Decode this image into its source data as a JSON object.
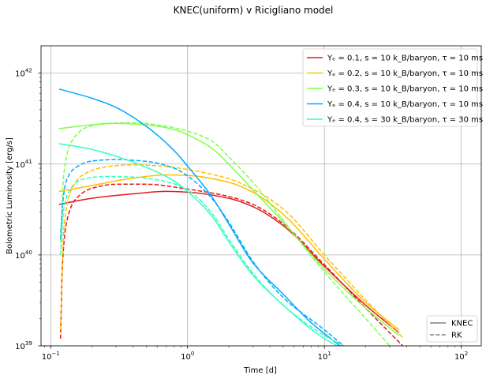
{
  "chart_data": {
    "type": "line",
    "title": "KNEC(uniform) v Ricigliano model",
    "xlabel": "Time [d]",
    "ylabel": "Bolometric Luminosity [erg/s]",
    "xscale": "log",
    "yscale": "log",
    "xlim": [
      0.085,
      140
    ],
    "ylim": [
      1e+39,
      2e+42
    ],
    "grid": true,
    "x_ticks": [
      {
        "value": 0.1,
        "base": "10",
        "exp": "−1"
      },
      {
        "value": 1,
        "base": "10",
        "exp": "0"
      },
      {
        "value": 10,
        "base": "10",
        "exp": "1"
      },
      {
        "value": 100,
        "base": "10",
        "exp": "2"
      }
    ],
    "y_ticks": [
      {
        "value": 1e+39,
        "base": "10",
        "exp": "39"
      },
      {
        "value": 1e+40,
        "base": "10",
        "exp": "40"
      },
      {
        "value": 1e+41,
        "base": "10",
        "exp": "41"
      },
      {
        "value": 1e+42,
        "base": "10",
        "exp": "42"
      }
    ],
    "legend_placement": "top-right",
    "legend": [
      {
        "label": "Yₑ = 0.1, s = 10 k_B/baryon, τ = 10 ms",
        "color": "#e41a1c"
      },
      {
        "label": "Yₑ = 0.2, s = 10 k_B/baryon, τ = 10 ms",
        "color": "#ffbf00"
      },
      {
        "label": "Yₑ = 0.3, s = 10 k_B/baryon, τ = 10 ms",
        "color": "#80ff4d"
      },
      {
        "label": "Yₑ = 0.4, s = 10 k_B/baryon, τ = 10 ms",
        "color": "#00aaff"
      },
      {
        "label": "Yₑ = 0.4, s = 30 k_B/baryon, τ = 30 ms",
        "color": "#33ffc4"
      }
    ],
    "style_legend_placement": "bottom-right",
    "style_legend": [
      {
        "label": "KNEC",
        "dash": "solid",
        "color": "#808080"
      },
      {
        "label": "RK",
        "dash": "dashed",
        "color": "#808080"
      }
    ],
    "series": [
      {
        "color": "#e41a1c",
        "style": "solid",
        "x": [
          0.115,
          0.2,
          0.4,
          0.7,
          1,
          2,
          3,
          5,
          10,
          20,
          35
        ],
        "y": [
          3.6e+40,
          4.2e+40,
          4.7e+40,
          5e+40,
          4.9e+40,
          4.2e+40,
          3.4e+40,
          2.1e+40,
          7.5e+39,
          2.8e+39,
          1.4e+39
        ]
      },
      {
        "color": "#e41a1c",
        "style": "dashed",
        "x": [
          0.118,
          0.122,
          0.13,
          0.15,
          0.2,
          0.3,
          0.5,
          1,
          2,
          3,
          5,
          10,
          20,
          40
        ],
        "y": [
          1.2e+39,
          8e+39,
          2.2e+40,
          4e+40,
          5.4e+40,
          6e+40,
          6e+40,
          5.3e+40,
          4.4e+40,
          3.6e+40,
          2.2e+40,
          7.8e+39,
          2.6e+39,
          9e+38
        ]
      },
      {
        "color": "#ffbf00",
        "style": "solid",
        "x": [
          0.115,
          0.2,
          0.4,
          0.7,
          1,
          2,
          3,
          5,
          10,
          20,
          35
        ],
        "y": [
          5e+40,
          5.8e+40,
          7e+40,
          7.6e+40,
          7.5e+40,
          6.3e+40,
          4.9e+40,
          2.8e+40,
          9e+39,
          3e+39,
          1.5e+39
        ]
      },
      {
        "color": "#ffbf00",
        "style": "dashed",
        "x": [
          0.118,
          0.125,
          0.14,
          0.17,
          0.25,
          0.4,
          0.7,
          1,
          2,
          3,
          5,
          10,
          20,
          38
        ],
        "y": [
          1.5e+39,
          2e+40,
          5e+40,
          7.5e+40,
          9.3e+40,
          9.8e+40,
          9.4e+40,
          8.7e+40,
          6.9e+40,
          5.3e+40,
          3.2e+40,
          1e+40,
          3.2e+39,
          1.2e+39
        ]
      },
      {
        "color": "#80ff4d",
        "style": "solid",
        "x": [
          0.115,
          0.2,
          0.3,
          0.5,
          0.8,
          1,
          1.5,
          2,
          3,
          5,
          10,
          20,
          35
        ],
        "y": [
          2.45e+41,
          2.7e+41,
          2.8e+41,
          2.7e+41,
          2.4e+41,
          2.1e+41,
          1.5e+41,
          1e+41,
          5.2e+40,
          2.3e+40,
          7e+39,
          2.6e+39,
          1.3e+39
        ]
      },
      {
        "color": "#80ff4d",
        "style": "dashed",
        "x": [
          0.118,
          0.125,
          0.14,
          0.18,
          0.25,
          0.4,
          0.7,
          1,
          1.5,
          2,
          3,
          5,
          10,
          20,
          30
        ],
        "y": [
          1.4e+40,
          8e+40,
          1.7e+41,
          2.5e+41,
          2.8e+41,
          2.85e+41,
          2.6e+41,
          2.3e+41,
          1.8e+41,
          1.2e+41,
          6.3e+40,
          2.4e+40,
          6.5e+39,
          2e+39,
          1e+39
        ]
      },
      {
        "color": "#00aaff",
        "style": "solid",
        "x": [
          0.115,
          0.2,
          0.3,
          0.5,
          0.8,
          1,
          1.5,
          2,
          3,
          5,
          8,
          13
        ],
        "y": [
          6.7e+41,
          5.3e+41,
          4.2e+41,
          2.6e+41,
          1.4e+41,
          9.5e+40,
          4.4e+40,
          2.2e+40,
          8.2e+39,
          3.7e+39,
          1.8e+39,
          1e+39
        ]
      },
      {
        "color": "#00aaff",
        "style": "dashed",
        "x": [
          0.118,
          0.123,
          0.13,
          0.15,
          0.2,
          0.3,
          0.5,
          0.8,
          1,
          1.5,
          2,
          3,
          5,
          10,
          15
        ],
        "y": [
          1.5e+40,
          4e+40,
          6.5e+40,
          9e+40,
          1.08e+41,
          1.12e+41,
          1.07e+41,
          9e+40,
          7.4e+40,
          4.2e+40,
          2.3e+40,
          8.5e+39,
          3.4e+39,
          1.5e+39,
          9e+38
        ]
      },
      {
        "color": "#33ffc4",
        "style": "solid",
        "x": [
          0.115,
          0.2,
          0.3,
          0.5,
          0.8,
          1,
          1.5,
          2,
          3,
          5,
          10,
          20
        ],
        "y": [
          1.68e+41,
          1.45e+41,
          1.22e+41,
          9.2e+40,
          6.5e+40,
          5e+40,
          2.7e+40,
          1.4e+40,
          6e+39,
          2.8e+39,
          1.2e+39,
          7e+38
        ]
      },
      {
        "color": "#33ffc4",
        "style": "dashed",
        "x": [
          0.118,
          0.125,
          0.14,
          0.17,
          0.25,
          0.4,
          0.7,
          1,
          1.5,
          2,
          3,
          5,
          10,
          16
        ],
        "y": [
          1e+40,
          3.3e+40,
          5.4e+40,
          6.8e+40,
          7.3e+40,
          7.2e+40,
          6.4e+40,
          5.2e+40,
          2.9e+40,
          1.5e+40,
          6.3e+39,
          2.8e+39,
          1.3e+39,
          9e+38
        ]
      }
    ]
  }
}
